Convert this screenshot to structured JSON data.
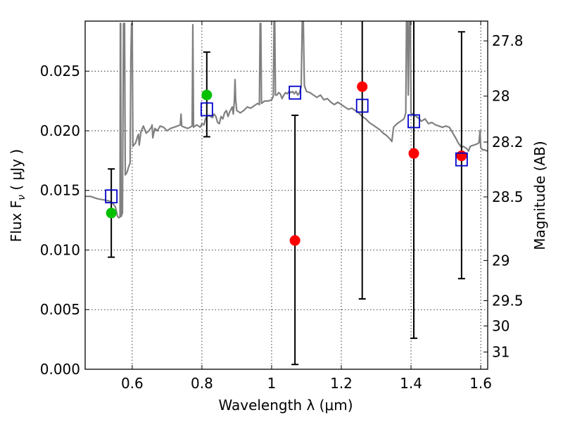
{
  "chart_data": {
    "type": "scatter",
    "xlabel": "Wavelength  λ (μm)",
    "ylabel": "Flux  F",
    "ylabel_sub": "ν",
    "ylabel_unit": "  ( μJy )",
    "y2label": "Magnitude (AB)",
    "xlim": [
      0.465,
      1.62
    ],
    "ylim": [
      0.0,
      0.0292
    ],
    "x_ticks": [
      0.6,
      0.8,
      1.0,
      1.2,
      1.4,
      1.6
    ],
    "x_tick_labels": [
      "0.6",
      "0.8",
      "1",
      "1.2",
      "1.4",
      "1.6"
    ],
    "y_ticks": [
      0.0,
      0.005,
      0.01,
      0.015,
      0.02,
      0.025
    ],
    "y_tick_labels": [
      "0.000",
      "0.005",
      "0.010",
      "0.015",
      "0.020",
      "0.025"
    ],
    "y2_ticks": [
      27.8,
      28.0,
      28.2,
      28.5,
      29.0,
      29.5,
      30.0,
      31.0
    ],
    "y2_tick_labels": [
      "27.8",
      "28",
      "28.2",
      "28.5",
      "29",
      "29.5",
      "30",
      "31"
    ],
    "grid": true,
    "colors": {
      "model": "#808080",
      "detected": "#00c000",
      "upper": "#ff0000",
      "model_points": "#0000cc",
      "errorbar": "#000000"
    },
    "series": [
      {
        "marker": "circle",
        "color": "#00c000",
        "points": [
          {
            "x": 0.54,
            "y": 0.0131,
            "yerr_low": 0.0094,
            "yerr_high": 0.0168
          },
          {
            "x": 0.814,
            "y": 0.023,
            "yerr_low": 0.0195,
            "yerr_high": 0.0266
          }
        ]
      },
      {
        "marker": "circle",
        "color": "#ff0000",
        "points": [
          {
            "x": 1.067,
            "y": 0.0108,
            "yerr_low": 0.0004,
            "yerr_high": 0.0213
          },
          {
            "x": 1.26,
            "y": 0.0237,
            "yerr_low": 0.0059,
            "yerr_high": 0.0292
          },
          {
            "x": 1.408,
            "y": 0.0181,
            "yerr_low": 0.0026,
            "yerr_high": 0.0292
          },
          {
            "x": 1.545,
            "y": 0.0179,
            "yerr_low": 0.0076,
            "yerr_high": 0.0283
          }
        ]
      },
      {
        "marker": "open-square",
        "color": "#0000cc",
        "points": [
          {
            "x": 0.54,
            "y": 0.0145
          },
          {
            "x": 0.814,
            "y": 0.0218
          },
          {
            "x": 1.067,
            "y": 0.0232
          },
          {
            "x": 1.26,
            "y": 0.0221
          },
          {
            "x": 1.408,
            "y": 0.0208
          },
          {
            "x": 1.545,
            "y": 0.0176
          }
        ]
      },
      {
        "marker": "line",
        "color": "#808080",
        "points": [
          [
            0.465,
            0.0145
          ],
          [
            0.48,
            0.0145
          ],
          [
            0.5,
            0.0143
          ],
          [
            0.52,
            0.0142
          ],
          [
            0.535,
            0.0141
          ],
          [
            0.545,
            0.0139
          ],
          [
            0.552,
            0.0136
          ],
          [
            0.558,
            0.0128
          ],
          [
            0.562,
            0.0127
          ],
          [
            0.565,
            0.0128
          ],
          [
            0.566,
            0.029
          ],
          [
            0.567,
            0.029
          ],
          [
            0.568,
            0.0128
          ],
          [
            0.572,
            0.0131
          ],
          [
            0.575,
            0.029
          ],
          [
            0.578,
            0.029
          ],
          [
            0.58,
            0.0163
          ],
          [
            0.585,
            0.0165
          ],
          [
            0.59,
            0.017
          ],
          [
            0.594,
            0.0173
          ],
          [
            0.596,
            0.026
          ],
          [
            0.598,
            0.029
          ],
          [
            0.6,
            0.029
          ],
          [
            0.602,
            0.0187
          ],
          [
            0.61,
            0.019
          ],
          [
            0.615,
            0.0195
          ],
          [
            0.618,
            0.0197
          ],
          [
            0.62,
            0.0188
          ],
          [
            0.625,
            0.0199
          ],
          [
            0.632,
            0.0204
          ],
          [
            0.64,
            0.0198
          ],
          [
            0.648,
            0.02
          ],
          [
            0.655,
            0.0203
          ],
          [
            0.657,
            0.0205
          ],
          [
            0.659,
            0.0194
          ],
          [
            0.661,
            0.0197
          ],
          [
            0.665,
            0.0202
          ],
          [
            0.672,
            0.02
          ],
          [
            0.68,
            0.0204
          ],
          [
            0.69,
            0.0203
          ],
          [
            0.7,
            0.02
          ],
          [
            0.71,
            0.0202
          ],
          [
            0.72,
            0.0203
          ],
          [
            0.73,
            0.0204
          ],
          [
            0.738,
            0.0205
          ],
          [
            0.74,
            0.0214
          ],
          [
            0.742,
            0.0204
          ],
          [
            0.75,
            0.0203
          ],
          [
            0.76,
            0.0202
          ],
          [
            0.772,
            0.0204
          ],
          [
            0.774,
            0.0289
          ],
          [
            0.776,
            0.0203
          ],
          [
            0.785,
            0.0205
          ],
          [
            0.795,
            0.0203
          ],
          [
            0.8,
            0.0206
          ],
          [
            0.806,
            0.0205
          ],
          [
            0.81,
            0.021
          ],
          [
            0.815,
            0.0212
          ],
          [
            0.82,
            0.0213
          ],
          [
            0.83,
            0.0211
          ],
          [
            0.835,
            0.0214
          ],
          [
            0.84,
            0.0212
          ],
          [
            0.845,
            0.0207
          ],
          [
            0.85,
            0.0206
          ],
          [
            0.855,
            0.0212
          ],
          [
            0.86,
            0.021
          ],
          [
            0.865,
            0.0215
          ],
          [
            0.87,
            0.0217
          ],
          [
            0.875,
            0.0212
          ],
          [
            0.88,
            0.0216
          ],
          [
            0.887,
            0.022
          ],
          [
            0.89,
            0.0214
          ],
          [
            0.893,
            0.0225
          ],
          [
            0.895,
            0.0243
          ],
          [
            0.897,
            0.0226
          ],
          [
            0.9,
            0.0217
          ],
          [
            0.91,
            0.0215
          ],
          [
            0.92,
            0.0217
          ],
          [
            0.93,
            0.022
          ],
          [
            0.94,
            0.0219
          ],
          [
            0.95,
            0.0221
          ],
          [
            0.96,
            0.0223
          ],
          [
            0.965,
            0.0222
          ],
          [
            0.967,
            0.029
          ],
          [
            0.969,
            0.029
          ],
          [
            0.971,
            0.0223
          ],
          [
            0.98,
            0.0225
          ],
          [
            0.99,
            0.0225
          ],
          [
            1.0,
            0.0226
          ],
          [
            1.005,
            0.0229
          ],
          [
            1.007,
            0.0292
          ],
          [
            1.009,
            0.0292
          ],
          [
            1.011,
            0.023
          ],
          [
            1.015,
            0.023
          ],
          [
            1.02,
            0.0232
          ],
          [
            1.025,
            0.0231
          ],
          [
            1.03,
            0.0227
          ],
          [
            1.035,
            0.023
          ],
          [
            1.04,
            0.0232
          ],
          [
            1.045,
            0.0231
          ],
          [
            1.05,
            0.0233
          ],
          [
            1.055,
            0.0232
          ],
          [
            1.06,
            0.0233
          ],
          [
            1.065,
            0.0231
          ],
          [
            1.07,
            0.0233
          ],
          [
            1.075,
            0.023
          ],
          [
            1.08,
            0.0232
          ],
          [
            1.085,
            0.0237
          ],
          [
            1.088,
            0.0292
          ],
          [
            1.091,
            0.0292
          ],
          [
            1.094,
            0.0238
          ],
          [
            1.1,
            0.0233
          ],
          [
            1.11,
            0.0232
          ],
          [
            1.12,
            0.023
          ],
          [
            1.13,
            0.0228
          ],
          [
            1.14,
            0.023
          ],
          [
            1.15,
            0.0226
          ],
          [
            1.16,
            0.0227
          ],
          [
            1.17,
            0.0224
          ],
          [
            1.18,
            0.0222
          ],
          [
            1.19,
            0.0224
          ],
          [
            1.2,
            0.0222
          ],
          [
            1.21,
            0.022
          ],
          [
            1.22,
            0.0218
          ],
          [
            1.23,
            0.0219
          ],
          [
            1.24,
            0.0217
          ],
          [
            1.25,
            0.0215
          ],
          [
            1.26,
            0.0212
          ],
          [
            1.27,
            0.021
          ],
          [
            1.28,
            0.0207
          ],
          [
            1.29,
            0.0205
          ],
          [
            1.3,
            0.0203
          ],
          [
            1.31,
            0.0201
          ],
          [
            1.32,
            0.0198
          ],
          [
            1.33,
            0.0196
          ],
          [
            1.34,
            0.0193
          ],
          [
            1.345,
            0.0191
          ],
          [
            1.35,
            0.0203
          ],
          [
            1.36,
            0.0206
          ],
          [
            1.37,
            0.0208
          ],
          [
            1.38,
            0.021
          ],
          [
            1.385,
            0.0215
          ],
          [
            1.387,
            0.0292
          ],
          [
            1.39,
            0.0292
          ],
          [
            1.392,
            0.023
          ],
          [
            1.395,
            0.0292
          ],
          [
            1.398,
            0.0292
          ],
          [
            1.4,
            0.0215
          ],
          [
            1.41,
            0.0213
          ],
          [
            1.42,
            0.0211
          ],
          [
            1.43,
            0.0208
          ],
          [
            1.44,
            0.021
          ],
          [
            1.45,
            0.0206
          ],
          [
            1.46,
            0.0207
          ],
          [
            1.47,
            0.0205
          ],
          [
            1.48,
            0.0204
          ],
          [
            1.49,
            0.0203
          ],
          [
            1.5,
            0.0204
          ],
          [
            1.51,
            0.0203
          ],
          [
            1.52,
            0.0198
          ],
          [
            1.53,
            0.0193
          ],
          [
            1.535,
            0.019
          ],
          [
            1.54,
            0.0188
          ],
          [
            1.545,
            0.0186
          ],
          [
            1.55,
            0.0187
          ],
          [
            1.56,
            0.0185
          ],
          [
            1.565,
            0.0183
          ],
          [
            1.57,
            0.0187
          ],
          [
            1.58,
            0.0188
          ],
          [
            1.59,
            0.0189
          ],
          [
            1.595,
            0.019
          ],
          [
            1.598,
            0.02
          ],
          [
            1.6,
            0.0186
          ],
          [
            1.605,
            0.0184
          ],
          [
            1.61,
            0.0184
          ],
          [
            1.62,
            0.0183
          ]
        ]
      }
    ]
  }
}
